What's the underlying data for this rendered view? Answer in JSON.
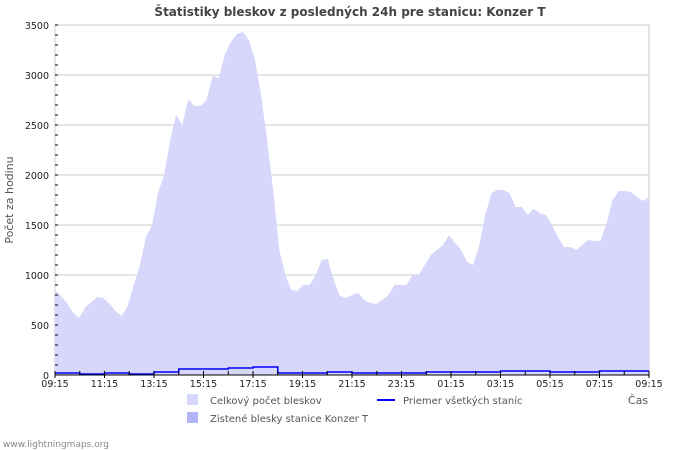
{
  "chart_data": {
    "type": "area",
    "title": "Štatistiky bleskov z posledných 24h pre stanicu: Konzer T",
    "xlabel": "Čas",
    "ylabel": "Počet za hodinu",
    "ylim": [
      0,
      3500
    ],
    "yticks": [
      "0",
      "500",
      "1000",
      "1500",
      "2000",
      "2500",
      "3000",
      "3500"
    ],
    "xticks": [
      "09:15",
      "11:15",
      "13:15",
      "15:15",
      "17:15",
      "19:15",
      "21:15",
      "23:15",
      "01:15",
      "03:15",
      "05:15",
      "07:15",
      "09:15"
    ],
    "grid": true,
    "legend_position": "bottom",
    "series": [
      {
        "name": "Celkový počet bleskov",
        "kind": "area",
        "color": "#d7d7fb",
        "values": [
          850,
          790,
          720,
          620,
          570,
          680,
          730,
          780,
          770,
          710,
          640,
          590,
          690,
          900,
          1100,
          1380,
          1500,
          1820,
          2000,
          2350,
          2600,
          2500,
          2760,
          2690,
          2690,
          2750,
          2990,
          2970,
          3200,
          3330,
          3410,
          3430,
          3350,
          3150,
          2800,
          2350,
          1850,
          1250,
          1000,
          850,
          840,
          900,
          900,
          1000,
          1150,
          1160,
          950,
          790,
          770,
          800,
          820,
          750,
          720,
          710,
          750,
          800,
          900,
          900,
          900,
          1000,
          1000,
          1100,
          1200,
          1250,
          1300,
          1400,
          1320,
          1250,
          1130,
          1100,
          1300,
          1600,
          1820,
          1850,
          1850,
          1820,
          1680,
          1680,
          1600,
          1660,
          1620,
          1600,
          1500,
          1380,
          1280,
          1280,
          1250,
          1300,
          1350,
          1340,
          1340,
          1520,
          1750,
          1840,
          1840,
          1830,
          1780,
          1740,
          1780
        ]
      },
      {
        "name": "Zistené blesky stanice Konzer T",
        "kind": "area",
        "color": "#b3b3f7",
        "values": []
      },
      {
        "name": "Priemer všetkých staníc",
        "kind": "step-line",
        "color": "#0000ff",
        "values": [
          20,
          10,
          20,
          10,
          30,
          60,
          60,
          70,
          80,
          20,
          20,
          30,
          20,
          20,
          20,
          30,
          30,
          30,
          40,
          40,
          30,
          30,
          40,
          40,
          40
        ]
      }
    ]
  },
  "footer": "www.lightningmaps.org"
}
